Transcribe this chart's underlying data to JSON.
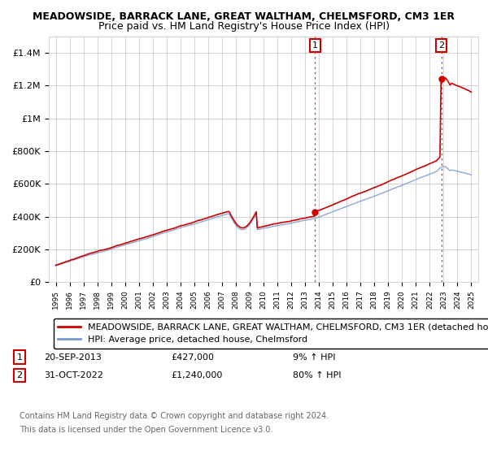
{
  "title": "MEADOWSIDE, BARRACK LANE, GREAT WALTHAM, CHELMSFORD, CM3 1ER",
  "subtitle": "Price paid vs. HM Land Registry's House Price Index (HPI)",
  "ylim": [
    0,
    1500000
  ],
  "yticks": [
    0,
    200000,
    400000,
    600000,
    800000,
    1000000,
    1200000,
    1400000
  ],
  "ytick_labels": [
    "£0",
    "£200K",
    "£400K",
    "£600K",
    "£800K",
    "£1M",
    "£1.2M",
    "£1.4M"
  ],
  "xlim": [
    1994.5,
    2025.5
  ],
  "xtick_years": [
    1995,
    1996,
    1997,
    1998,
    1999,
    2000,
    2001,
    2002,
    2003,
    2004,
    2005,
    2006,
    2007,
    2008,
    2009,
    2010,
    2011,
    2012,
    2013,
    2014,
    2015,
    2016,
    2017,
    2018,
    2019,
    2020,
    2021,
    2022,
    2023,
    2024,
    2025
  ],
  "hpi_color": "#7799cc",
  "price_color": "#cc0000",
  "grid_color": "#cccccc",
  "background_color": "#ffffff",
  "purchase1_x": 2013.72,
  "purchase1_y": 427000,
  "purchase2_x": 2022.83,
  "purchase2_y": 1240000,
  "vline_color": "#cc0000",
  "legend_label_price": "MEADOWSIDE, BARRACK LANE, GREAT WALTHAM, CHELMSFORD, CM3 1ER (detached ho",
  "legend_label_hpi": "HPI: Average price, detached house, Chelmsford",
  "annotation1_label": "1",
  "annotation1_date": "20-SEP-2013",
  "annotation1_price": "£427,000",
  "annotation1_hpi": "9% ↑ HPI",
  "annotation2_label": "2",
  "annotation2_date": "31-OCT-2022",
  "annotation2_price": "£1,240,000",
  "annotation2_hpi": "80% ↑ HPI",
  "footer1": "Contains HM Land Registry data © Crown copyright and database right 2024.",
  "footer2": "This data is licensed under the Open Government Licence v3.0.",
  "title_fontsize": 9,
  "subtitle_fontsize": 9,
  "axis_fontsize": 8,
  "legend_fontsize": 8,
  "annotation_fontsize": 8,
  "footer_fontsize": 7
}
